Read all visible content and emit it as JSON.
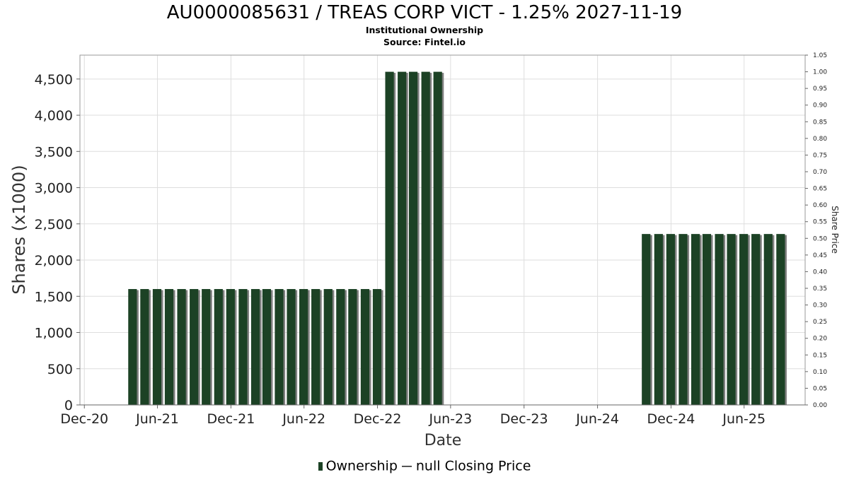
{
  "header": {
    "title": "AU0000085631 / TREAS CORP VICT - 1.25% 2027-11-19",
    "subtitle1": "Institutional Ownership",
    "subtitle2": "Source: Fintel.io"
  },
  "legend": {
    "ownership": "Ownership",
    "price": "null Closing Price"
  },
  "colors": {
    "bar": "#1c4225",
    "bar_shadow": "#808080",
    "grid": "#dedede",
    "plot_border": "#999999"
  },
  "chart_data": {
    "type": "bar",
    "xlabel": "Date",
    "ylabel": "Shares (x1000)",
    "y2label": "Share Price",
    "ylim": [
      0,
      4830
    ],
    "y2lim": [
      0,
      1.05
    ],
    "yticks": [
      0,
      500,
      1000,
      1500,
      2000,
      2500,
      3000,
      3500,
      4000,
      4500
    ],
    "ytick_labels": [
      "0",
      "500",
      "1,000",
      "1,500",
      "2,000",
      "2,500",
      "3,000",
      "3,500",
      "4,000",
      "4,500"
    ],
    "y2ticks": [
      0,
      0.05,
      0.1,
      0.15,
      0.2,
      0.25,
      0.3,
      0.35,
      0.4,
      0.45,
      0.5,
      0.55,
      0.6,
      0.65,
      0.7,
      0.75,
      0.8,
      0.85,
      0.9,
      0.95,
      1.0,
      1.05
    ],
    "y2tick_labels": [
      "0.00",
      "0.05",
      "0.10",
      "0.15",
      "0.20",
      "0.25",
      "0.30",
      "0.35",
      "0.40",
      "0.45",
      "0.50",
      "0.55",
      "0.60",
      "0.65",
      "0.70",
      "0.75",
      "0.80",
      "0.85",
      "0.90",
      "0.95",
      "1.00",
      "1.05"
    ],
    "xlim": [
      "2020-11-20",
      "2025-10-31"
    ],
    "xticks": [
      "2020-12-01",
      "2021-06-01",
      "2021-12-01",
      "2022-06-01",
      "2022-12-01",
      "2023-06-01",
      "2023-12-01",
      "2024-06-01",
      "2024-12-01",
      "2025-06-01"
    ],
    "xtick_labels": [
      "Dec-20",
      "Jun-21",
      "Dec-21",
      "Jun-22",
      "Dec-22",
      "Jun-23",
      "Dec-23",
      "Jun-24",
      "Dec-24",
      "Jun-25"
    ],
    "grid": true,
    "legend_position": "bottom",
    "series": [
      {
        "name": "Ownership",
        "x": [
          "2021-03-31",
          "2021-04-30",
          "2021-05-31",
          "2021-06-30",
          "2021-07-31",
          "2021-08-31",
          "2021-09-30",
          "2021-10-31",
          "2021-11-30",
          "2021-12-31",
          "2022-01-31",
          "2022-02-28",
          "2022-03-31",
          "2022-04-30",
          "2022-05-31",
          "2022-06-30",
          "2022-07-31",
          "2022-08-31",
          "2022-09-30",
          "2022-10-31",
          "2022-11-30",
          "2022-12-31",
          "2023-01-31",
          "2023-02-28",
          "2023-03-31",
          "2023-04-30",
          "2024-09-30",
          "2024-10-31",
          "2024-11-30",
          "2024-12-31",
          "2025-01-31",
          "2025-02-28",
          "2025-03-31",
          "2025-04-30",
          "2025-05-31",
          "2025-06-30",
          "2025-07-31",
          "2025-08-31"
        ],
        "values": [
          1600,
          1600,
          1600,
          1600,
          1600,
          1600,
          1600,
          1600,
          1600,
          1600,
          1600,
          1600,
          1600,
          1600,
          1600,
          1600,
          1600,
          1600,
          1600,
          1600,
          1600,
          4600,
          4600,
          4600,
          4600,
          4600,
          2360,
          2360,
          2360,
          2360,
          2360,
          2360,
          2360,
          2360,
          2360,
          2360,
          2360,
          2360
        ]
      }
    ]
  }
}
